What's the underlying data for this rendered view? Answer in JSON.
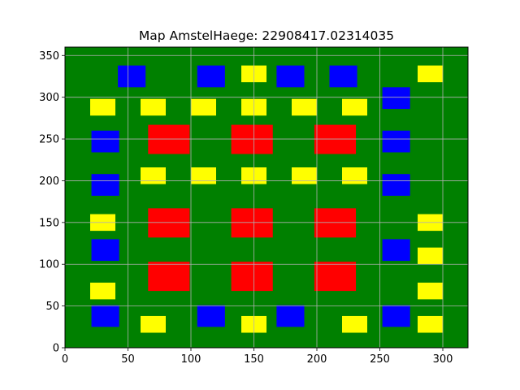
{
  "chart_data": {
    "type": "heatmap",
    "title": "Map AmstelHaege: 22908417.02314035",
    "xlabel": "",
    "ylabel": "",
    "xlim": [
      0,
      320
    ],
    "ylim": [
      0,
      360
    ],
    "xticks": [
      0,
      50,
      100,
      150,
      200,
      250,
      300
    ],
    "yticks": [
      0,
      50,
      100,
      150,
      200,
      250,
      300,
      350
    ],
    "grid": true,
    "background_color": "#008000",
    "grid_color": "#b0b0b0",
    "rect_colors": {
      "water": "#0000ff",
      "small_house": "#ffff00",
      "large_house": "#ff0000"
    },
    "rectangles": [
      {
        "kind": "water",
        "x0": 42,
        "y0": 312,
        "x1": 64,
        "y1": 338
      },
      {
        "kind": "water",
        "x0": 105,
        "y0": 312,
        "x1": 127,
        "y1": 338
      },
      {
        "kind": "water",
        "x0": 168,
        "y0": 312,
        "x1": 190,
        "y1": 338
      },
      {
        "kind": "water",
        "x0": 210,
        "y0": 312,
        "x1": 232,
        "y1": 338
      },
      {
        "kind": "water",
        "x0": 252,
        "y0": 286,
        "x1": 274,
        "y1": 312
      },
      {
        "kind": "water",
        "x0": 21,
        "y0": 234,
        "x1": 43,
        "y1": 260
      },
      {
        "kind": "water",
        "x0": 252,
        "y0": 234,
        "x1": 274,
        "y1": 260
      },
      {
        "kind": "water",
        "x0": 21,
        "y0": 182,
        "x1": 43,
        "y1": 208
      },
      {
        "kind": "water",
        "x0": 252,
        "y0": 182,
        "x1": 274,
        "y1": 208
      },
      {
        "kind": "water",
        "x0": 21,
        "y0": 104,
        "x1": 43,
        "y1": 130
      },
      {
        "kind": "water",
        "x0": 252,
        "y0": 104,
        "x1": 274,
        "y1": 130
      },
      {
        "kind": "water",
        "x0": 21,
        "y0": 25,
        "x1": 43,
        "y1": 51
      },
      {
        "kind": "water",
        "x0": 105,
        "y0": 25,
        "x1": 127,
        "y1": 51
      },
      {
        "kind": "water",
        "x0": 168,
        "y0": 25,
        "x1": 190,
        "y1": 51
      },
      {
        "kind": "water",
        "x0": 252,
        "y0": 25,
        "x1": 274,
        "y1": 51
      },
      {
        "kind": "small_house",
        "x0": 140,
        "y0": 318,
        "x1": 160,
        "y1": 338
      },
      {
        "kind": "small_house",
        "x0": 280,
        "y0": 318,
        "x1": 300,
        "y1": 338
      },
      {
        "kind": "small_house",
        "x0": 20,
        "y0": 278,
        "x1": 40,
        "y1": 298
      },
      {
        "kind": "small_house",
        "x0": 60,
        "y0": 278,
        "x1": 80,
        "y1": 298
      },
      {
        "kind": "small_house",
        "x0": 100,
        "y0": 278,
        "x1": 120,
        "y1": 298
      },
      {
        "kind": "small_house",
        "x0": 140,
        "y0": 278,
        "x1": 160,
        "y1": 298
      },
      {
        "kind": "small_house",
        "x0": 180,
        "y0": 278,
        "x1": 200,
        "y1": 298
      },
      {
        "kind": "small_house",
        "x0": 220,
        "y0": 278,
        "x1": 240,
        "y1": 298
      },
      {
        "kind": "small_house",
        "x0": 60,
        "y0": 196,
        "x1": 80,
        "y1": 216
      },
      {
        "kind": "small_house",
        "x0": 100,
        "y0": 196,
        "x1": 120,
        "y1": 216
      },
      {
        "kind": "small_house",
        "x0": 140,
        "y0": 196,
        "x1": 160,
        "y1": 216
      },
      {
        "kind": "small_house",
        "x0": 180,
        "y0": 196,
        "x1": 200,
        "y1": 216
      },
      {
        "kind": "small_house",
        "x0": 220,
        "y0": 196,
        "x1": 240,
        "y1": 216
      },
      {
        "kind": "small_house",
        "x0": 20,
        "y0": 140,
        "x1": 40,
        "y1": 160
      },
      {
        "kind": "small_house",
        "x0": 280,
        "y0": 140,
        "x1": 300,
        "y1": 160
      },
      {
        "kind": "small_house",
        "x0": 280,
        "y0": 100,
        "x1": 300,
        "y1": 120
      },
      {
        "kind": "small_house",
        "x0": 20,
        "y0": 58,
        "x1": 40,
        "y1": 78
      },
      {
        "kind": "small_house",
        "x0": 280,
        "y0": 58,
        "x1": 300,
        "y1": 78
      },
      {
        "kind": "small_house",
        "x0": 60,
        "y0": 18,
        "x1": 80,
        "y1": 38
      },
      {
        "kind": "small_house",
        "x0": 140,
        "y0": 18,
        "x1": 160,
        "y1": 38
      },
      {
        "kind": "small_house",
        "x0": 220,
        "y0": 18,
        "x1": 240,
        "y1": 38
      },
      {
        "kind": "small_house",
        "x0": 280,
        "y0": 18,
        "x1": 300,
        "y1": 38
      },
      {
        "kind": "large_house",
        "x0": 66,
        "y0": 232,
        "x1": 99,
        "y1": 267
      },
      {
        "kind": "large_house",
        "x0": 132,
        "y0": 232,
        "x1": 165,
        "y1": 267
      },
      {
        "kind": "large_house",
        "x0": 198,
        "y0": 232,
        "x1": 231,
        "y1": 267
      },
      {
        "kind": "large_house",
        "x0": 66,
        "y0": 132,
        "x1": 99,
        "y1": 167
      },
      {
        "kind": "large_house",
        "x0": 132,
        "y0": 132,
        "x1": 165,
        "y1": 167
      },
      {
        "kind": "large_house",
        "x0": 198,
        "y0": 132,
        "x1": 231,
        "y1": 167
      },
      {
        "kind": "large_house",
        "x0": 66,
        "y0": 68,
        "x1": 99,
        "y1": 103
      },
      {
        "kind": "large_house",
        "x0": 132,
        "y0": 68,
        "x1": 165,
        "y1": 103
      },
      {
        "kind": "large_house",
        "x0": 198,
        "y0": 68,
        "x1": 231,
        "y1": 103
      }
    ]
  }
}
